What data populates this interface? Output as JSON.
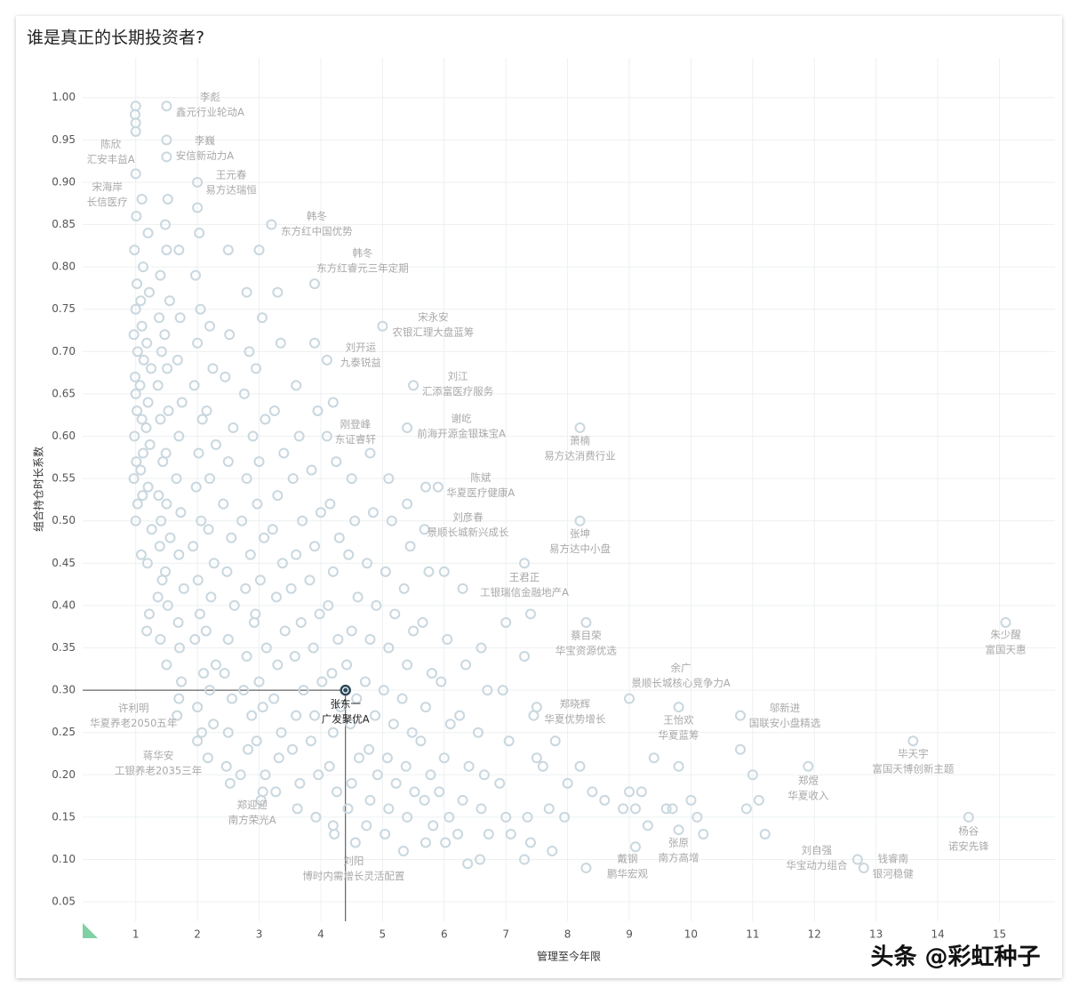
{
  "chart_data": {
    "type": "scatter",
    "title": "谁是真正的长期投资者?",
    "xlabel": "管理至今年限",
    "ylabel": "组合持仓时长系数",
    "xlim": [
      0.14,
      15.9
    ],
    "ylim": [
      0.027,
      1.047
    ],
    "xticks": [
      1,
      2,
      3,
      4,
      5,
      6,
      7,
      8,
      9,
      10,
      11,
      12,
      13,
      14,
      15
    ],
    "yticks": [
      0.05,
      {
        "value": 0.1,
        "label": "0.10"
      },
      0.15,
      {
        "value": 0.2,
        "label": "0.20"
      },
      0.25,
      {
        "value": 0.3,
        "label": "0.30"
      },
      0.35,
      {
        "value": 0.4,
        "label": "0.40"
      },
      0.45,
      {
        "value": 0.5,
        "label": "0.50"
      },
      0.55,
      {
        "value": 0.6,
        "label": "0.60"
      },
      0.65,
      {
        "value": 0.7,
        "label": "0.70"
      },
      0.75,
      {
        "value": 0.8,
        "label": "0.80"
      },
      0.85,
      {
        "value": 0.9,
        "label": "0.90"
      },
      0.95,
      {
        "value": 1.0,
        "label": "1.00"
      }
    ],
    "grid": true,
    "series": [
      {
        "color": "#c9d7df",
        "x": [
          1.0,
          0.99,
          1.0,
          1.01,
          0.98,
          1.02,
          1.0,
          0.97,
          1.03,
          0.99,
          1.0,
          1.02,
          0.98,
          1.01,
          0.97,
          1.03,
          1.0,
          1.1,
          1.12,
          1.08,
          1.1,
          1.13,
          1.07,
          1.1,
          1.12,
          1.08,
          1.11,
          1.09,
          1.2,
          1.22,
          1.18,
          1.25,
          1.2,
          1.17,
          1.23,
          1.2,
          1.26,
          1.19,
          1.22,
          1.18,
          1.4,
          1.38,
          1.42,
          1.36,
          1.4,
          1.44,
          1.37,
          1.41,
          1.39,
          1.43,
          1.36,
          1.4,
          1.5,
          1.52,
          1.48,
          1.5,
          1.55,
          1.47,
          1.51,
          1.53,
          1.49,
          1.5,
          1.56,
          1.48,
          1.52,
          1.5,
          1.7,
          1.72,
          1.68,
          1.75,
          1.7,
          1.66,
          1.73,
          1.7,
          1.78,
          1.69,
          1.71,
          1.74,
          1.67,
          2.0,
          2.03,
          1.97,
          2.05,
          2.0,
          1.95,
          2.08,
          2.02,
          1.98,
          2.06,
          1.93,
          2.01,
          2.04,
          1.96,
          2.1,
          2.0,
          2.07,
          2.2,
          2.25,
          2.15,
          2.3,
          2.2,
          2.18,
          2.27,
          2.22,
          2.14,
          2.3,
          2.2,
          2.26,
          2.17,
          2.5,
          2.52,
          2.45,
          2.58,
          2.5,
          2.42,
          2.55,
          2.48,
          2.6,
          2.5,
          2.44,
          2.56,
          2.5,
          2.47,
          2.53,
          2.8,
          2.84,
          2.76,
          2.9,
          2.8,
          2.72,
          2.86,
          2.78,
          2.92,
          2.8,
          2.75,
          2.88,
          2.82,
          2.7,
          3.0,
          3.05,
          2.95,
          3.1,
          3.0,
          2.97,
          3.08,
          3.02,
          2.94,
          3.12,
          3.0,
          3.06,
          2.96,
          3.1,
          3.03,
          3.3,
          3.35,
          3.25,
          3.4,
          3.3,
          3.22,
          3.38,
          3.28,
          3.42,
          3.3,
          3.24,
          3.36,
          3.32,
          3.27,
          3.6,
          3.65,
          3.55,
          3.7,
          3.6,
          3.52,
          3.68,
          3.58,
          3.72,
          3.6,
          3.54,
          3.66,
          3.62,
          3.9,
          3.95,
          3.85,
          4.0,
          3.9,
          3.82,
          3.98,
          3.88,
          4.02,
          3.9,
          3.84,
          3.96,
          3.92,
          4.2,
          4.25,
          4.15,
          4.3,
          4.2,
          4.12,
          4.28,
          4.18,
          4.32,
          4.2,
          4.14,
          4.26,
          4.22,
          4.5,
          4.55,
          4.45,
          4.6,
          4.5,
          4.42,
          4.58,
          4.48,
          4.62,
          4.5,
          4.44,
          4.56,
          4.8,
          4.85,
          4.75,
          4.9,
          4.8,
          4.72,
          4.88,
          4.78,
          4.92,
          4.8,
          4.74,
          5.1,
          5.15,
          5.05,
          5.2,
          5.1,
          5.02,
          5.18,
          5.08,
          5.22,
          5.1,
          5.04,
          5.4,
          5.45,
          5.35,
          5.5,
          5.4,
          5.32,
          5.48,
          5.38,
          5.52,
          5.4,
          5.34,
          5.7,
          5.75,
          5.65,
          5.8,
          5.7,
          5.62,
          5.78,
          5.68,
          5.82,
          5.7,
          6.0,
          6.05,
          5.95,
          6.1,
          6.0,
          5.92,
          6.08,
          6.02,
          6.3,
          6.35,
          6.25,
          6.4,
          6.3,
          6.22,
          6.38,
          6.6,
          6.7,
          6.55,
          6.65,
          6.6,
          6.72,
          6.58,
          7.0,
          6.95,
          7.05,
          6.9,
          7.0,
          7.08,
          7.4,
          7.3,
          7.45,
          7.5,
          7.35,
          7.4,
          7.3,
          7.8,
          7.6,
          7.7,
          7.75,
          8.0,
          7.95,
          8.2,
          8.4,
          8.6,
          8.3,
          8.9,
          9.0,
          9.2,
          9.3,
          9.4,
          9.1,
          9.6,
          9.8,
          9.7,
          10.0,
          10.2,
          10.1,
          11.0,
          11.1,
          10.9,
          11.2,
          10.8
        ],
        "values": [
          0.99,
          0.98,
          0.96,
          0.86,
          0.82,
          0.78,
          0.75,
          0.72,
          0.7,
          0.67,
          0.65,
          0.63,
          0.6,
          0.57,
          0.55,
          0.52,
          0.5,
          0.88,
          0.8,
          0.76,
          0.73,
          0.69,
          0.66,
          0.62,
          0.58,
          0.56,
          0.53,
          0.46,
          0.84,
          0.77,
          0.71,
          0.68,
          0.64,
          0.61,
          0.59,
          0.54,
          0.49,
          0.45,
          0.39,
          0.37,
          0.79,
          0.74,
          0.7,
          0.66,
          0.62,
          0.57,
          0.53,
          0.5,
          0.47,
          0.43,
          0.41,
          0.36,
          0.93,
          0.88,
          0.85,
          0.82,
          0.76,
          0.72,
          0.68,
          0.63,
          0.58,
          0.52,
          0.48,
          0.44,
          0.4,
          0.33,
          0.82,
          0.74,
          0.69,
          0.64,
          0.6,
          0.55,
          0.51,
          0.46,
          0.42,
          0.38,
          0.35,
          0.31,
          0.27,
          0.87,
          0.84,
          0.79,
          0.75,
          0.71,
          0.66,
          0.62,
          0.58,
          0.54,
          0.5,
          0.47,
          0.43,
          0.39,
          0.36,
          0.32,
          0.28,
          0.25,
          0.73,
          0.68,
          0.63,
          0.59,
          0.55,
          0.49,
          0.45,
          0.41,
          0.37,
          0.33,
          0.3,
          0.26,
          0.22,
          0.82,
          0.72,
          0.67,
          0.61,
          0.57,
          0.52,
          0.48,
          0.44,
          0.4,
          0.36,
          0.32,
          0.29,
          0.25,
          0.21,
          0.19,
          0.77,
          0.7,
          0.65,
          0.6,
          0.55,
          0.5,
          0.46,
          0.42,
          0.38,
          0.34,
          0.3,
          0.27,
          0.23,
          0.2,
          0.82,
          0.74,
          0.68,
          0.62,
          0.57,
          0.52,
          0.48,
          0.43,
          0.39,
          0.35,
          0.31,
          0.28,
          0.24,
          0.2,
          0.17,
          0.77,
          0.71,
          0.63,
          0.58,
          0.53,
          0.49,
          0.45,
          0.41,
          0.37,
          0.33,
          0.29,
          0.25,
          0.22,
          0.18,
          0.66,
          0.6,
          0.55,
          0.5,
          0.46,
          0.42,
          0.38,
          0.34,
          0.3,
          0.27,
          0.23,
          0.19,
          0.16,
          0.71,
          0.63,
          0.56,
          0.51,
          0.47,
          0.43,
          0.39,
          0.35,
          0.31,
          0.27,
          0.24,
          0.2,
          0.15,
          0.64,
          0.57,
          0.52,
          0.48,
          0.44,
          0.4,
          0.36,
          0.32,
          0.28,
          0.25,
          0.21,
          0.18,
          0.13,
          0.55,
          0.5,
          0.46,
          0.41,
          0.37,
          0.33,
          0.29,
          0.26,
          0.22,
          0.19,
          0.16,
          0.12,
          0.58,
          0.51,
          0.45,
          0.4,
          0.36,
          0.31,
          0.27,
          0.23,
          0.2,
          0.17,
          0.14,
          0.55,
          0.5,
          0.44,
          0.39,
          0.35,
          0.3,
          0.26,
          0.22,
          0.19,
          0.16,
          0.13,
          0.52,
          0.47,
          0.42,
          0.37,
          0.33,
          0.29,
          0.25,
          0.21,
          0.18,
          0.15,
          0.11,
          0.54,
          0.44,
          0.38,
          0.32,
          0.28,
          0.24,
          0.2,
          0.17,
          0.14,
          0.12,
          0.44,
          0.36,
          0.31,
          0.26,
          0.22,
          0.18,
          0.15,
          0.12,
          0.42,
          0.33,
          0.27,
          0.21,
          0.17,
          0.13,
          0.095,
          0.35,
          0.3,
          0.25,
          0.2,
          0.16,
          0.13,
          0.1,
          0.38,
          0.3,
          0.24,
          0.19,
          0.15,
          0.13,
          0.39,
          0.34,
          0.27,
          0.22,
          0.15,
          0.12,
          0.1,
          0.24,
          0.21,
          0.16,
          0.11,
          0.19,
          0.15,
          0.21,
          0.18,
          0.17,
          0.09,
          0.16,
          0.18,
          0.18,
          0.14,
          0.22,
          0.16,
          0.16,
          0.21,
          0.16,
          0.17,
          0.13,
          0.15,
          0.2,
          0.17,
          0.16,
          0.13,
          0.23
        ]
      },
      {
        "color": "#c9d7df",
        "x": [
          1.5,
          1.0,
          1.5,
          1.0,
          2.0,
          3.2,
          3.9,
          5.0,
          4.1,
          5.5,
          5.4,
          4.1,
          8.2,
          5.9,
          5.68,
          8.2,
          7.3,
          8.3,
          9.0,
          15.1,
          7.5,
          9.8,
          10.8,
          13.6,
          11.9,
          1.7,
          2.0,
          3.06,
          4.2,
          14.5,
          9.8,
          9.1,
          12.7,
          12.8
        ],
        "values": [
          0.99,
          0.97,
          0.95,
          0.91,
          0.9,
          0.85,
          0.78,
          0.73,
          0.69,
          0.66,
          0.61,
          0.6,
          0.61,
          0.54,
          0.49,
          0.5,
          0.45,
          0.38,
          0.29,
          0.38,
          0.28,
          0.28,
          0.27,
          0.24,
          0.21,
          0.29,
          0.24,
          0.18,
          0.14,
          0.15,
          0.135,
          0.115,
          0.1,
          0.09
        ],
        "labels": [
          [
            "李彪",
            "鑫元行业轮动A"
          ],
          [
            "陈欣",
            "汇安丰益A"
          ],
          [
            "李巍",
            "安信新动力A"
          ],
          [
            "宋海岸",
            "长信医疗"
          ],
          [
            "王元春",
            "易方达瑞恒"
          ],
          [
            "韩冬",
            "东方红中国优势"
          ],
          [
            "韩冬",
            "东方红睿元三年定期"
          ],
          [
            "宋永安",
            "农银汇理大盘蓝筹"
          ],
          [
            "刘开运",
            "九泰锐益"
          ],
          [
            "刘江",
            "汇添富医疗服务"
          ],
          [
            "谢屹",
            "前海开源金银珠宝A"
          ],
          [
            "刚登峰",
            "东证睿轩"
          ],
          [
            "萧楠",
            "易方达消费行业"
          ],
          [
            "陈斌",
            "华夏医疗健康A"
          ],
          [
            "刘彦春",
            "景顺长城新兴成长"
          ],
          [
            "张坤",
            "易方达中小盘"
          ],
          [
            "王君正",
            "工银瑞信金融地产A"
          ],
          [
            "蔡目荣",
            "华宝资源优选"
          ],
          [
            "余广",
            "景顺长城核心竞争力A"
          ],
          [
            "朱少醒",
            "富国天惠"
          ],
          [
            "郑晓辉",
            "华夏优势增长"
          ],
          [
            "王怡欢",
            "华夏蓝筹"
          ],
          [
            "邬新进",
            "国联安小盘精选"
          ],
          [
            "毕天宇",
            "富国天博创新主题"
          ],
          [
            "郑煜",
            "华夏收入"
          ],
          [
            "许利明",
            "华夏养老2050五年"
          ],
          [
            "蒋华安",
            "工银养老2035三年"
          ],
          [
            "郑迎迎",
            "南方荣光A"
          ],
          [
            "刘阳",
            "博时内需增长灵活配置"
          ],
          [
            "杨谷",
            "诺安先锋"
          ],
          [
            "张原",
            "南方高增"
          ],
          [
            "戴钢",
            "鹏华宏观"
          ],
          [
            "刘自强",
            "华宝动力组合"
          ],
          [
            "钱睿南",
            "银河稳健"
          ]
        ]
      },
      {
        "color": "#2d4b5a",
        "x": [
          4.4
        ],
        "values": [
          0.3
        ],
        "labels": [
          [
            "张东一",
            "广发聚优A"
          ]
        ]
      }
    ]
  },
  "watermark": "头条 @彩虹种子"
}
